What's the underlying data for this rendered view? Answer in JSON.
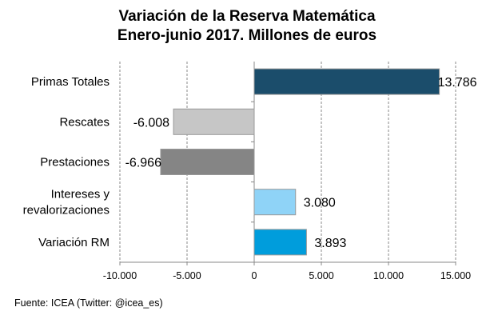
{
  "chart_data": {
    "type": "bar",
    "orientation": "horizontal",
    "title": "Variación  de la Reserva Matemática",
    "subtitle": "Enero-junio  2017. Millones  de euros",
    "categories": [
      "Primas Totales",
      "Rescates",
      "Prestaciones",
      "Intereses y revalorizaciones",
      "Variación RM"
    ],
    "category_lines": [
      [
        "Primas Totales"
      ],
      [
        "Rescates"
      ],
      [
        "Prestaciones"
      ],
      [
        "Intereses y",
        "revalorizaciones"
      ],
      [
        "Variación RM"
      ]
    ],
    "values": [
      13786,
      -6008,
      -6966,
      3080,
      3893
    ],
    "data_labels": [
      "13.786",
      "-6.008",
      "-6.966",
      "3.080",
      "3.893"
    ],
    "colors": [
      "#1b4d6b",
      "#c6c6c6",
      "#858585",
      "#8fd3f7",
      "#009ddc"
    ],
    "xlim": [
      -10000,
      15000
    ],
    "xticks": [
      -10000,
      -5000,
      0,
      5000,
      10000,
      15000
    ],
    "xtick_labels": [
      "-10.000",
      "-5.000",
      "0",
      "5.000",
      "10.000",
      "15.000"
    ],
    "grid": "vertical dashed",
    "xlabel": "",
    "ylabel": ""
  },
  "source": "Fuente:  ICEA (Twitter:  @icea_es)"
}
